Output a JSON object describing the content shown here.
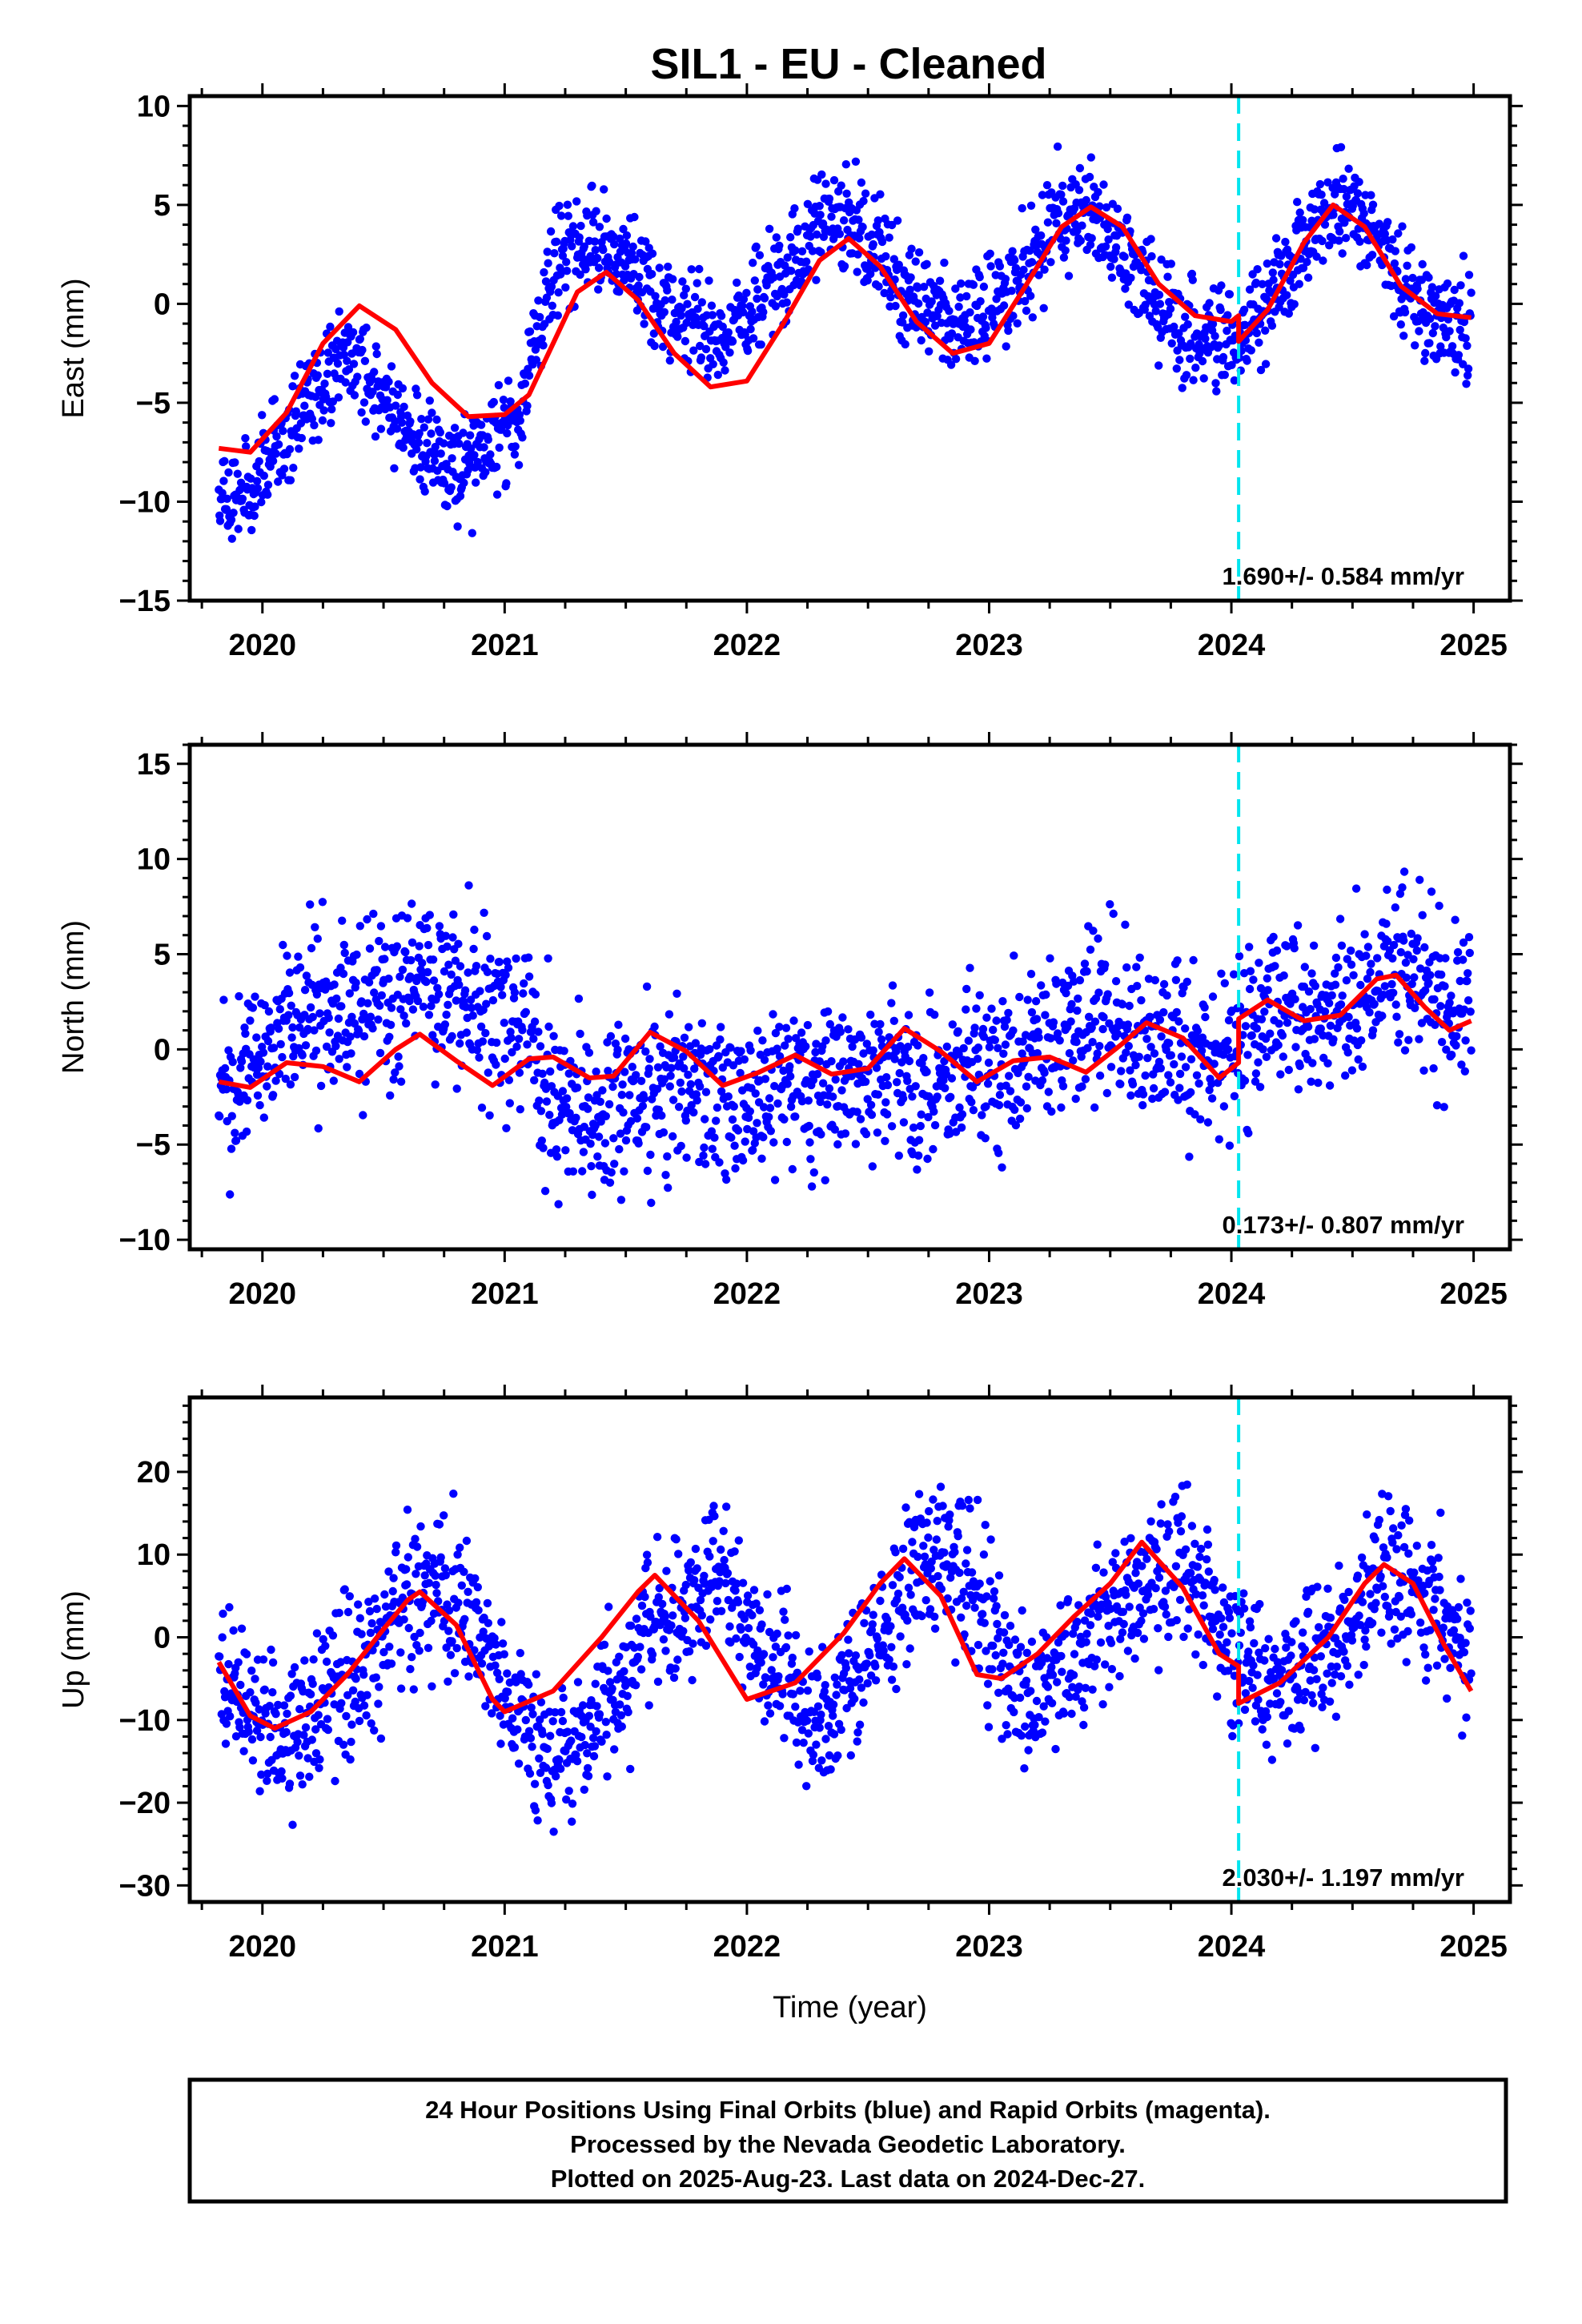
{
  "title": "SIL1  - EU - Cleaned",
  "colors": {
    "final_orbit_points": "#0000ff",
    "model_fit": "#ff0000",
    "event_marker": "#00e5ee",
    "frame": "#000000"
  },
  "chart_data": [
    {
      "type": "scatter",
      "ylabel": "East (mm)",
      "xlabel": "",
      "xlim": [
        2019.7,
        2025.15
      ],
      "ylim": [
        -15,
        10.5
      ],
      "xticks": [
        2020,
        2021,
        2022,
        2023,
        2024,
        2025
      ],
      "yticks": [
        -15,
        -10,
        -5,
        0,
        5,
        10
      ],
      "event_marker_x": 2024.03,
      "rate_label": "1.690+/- 0.584 mm/yr",
      "fit": {
        "x": [
          2019.82,
          2019.95,
          2020.1,
          2020.25,
          2020.4,
          2020.55,
          2020.7,
          2020.85,
          2021.0,
          2021.1,
          2021.2,
          2021.3,
          2021.42,
          2021.55,
          2021.7,
          2021.85,
          2022.0,
          2022.15,
          2022.3,
          2022.42,
          2022.55,
          2022.7,
          2022.85,
          2023.0,
          2023.15,
          2023.3,
          2023.42,
          2023.55,
          2023.7,
          2023.85,
          2024.0,
          2024.03,
          2024.03,
          2024.15,
          2024.3,
          2024.42,
          2024.55,
          2024.7,
          2024.85,
          2024.99
        ],
        "y": [
          -7.3,
          -7.5,
          -5.5,
          -2.0,
          -0.1,
          -1.3,
          -4.0,
          -5.7,
          -5.6,
          -4.6,
          -2.0,
          0.6,
          1.6,
          0.2,
          -2.5,
          -4.2,
          -3.9,
          -1.0,
          2.2,
          3.3,
          1.9,
          -0.9,
          -2.5,
          -2.0,
          0.9,
          3.9,
          4.9,
          3.9,
          1.0,
          -0.6,
          -0.9,
          -0.6,
          -1.9,
          -0.3,
          3.1,
          5.0,
          3.9,
          0.9,
          -0.5,
          -0.7
        ]
      },
      "points": {
        "mean": [
          -10,
          -9,
          -7,
          -4,
          -2.5,
          -5,
          -7.5,
          -8.5,
          -7,
          -5,
          2.5,
          3,
          2,
          0,
          -1,
          -2,
          0.5,
          2,
          4.5,
          4,
          1,
          -0.5,
          -1,
          0,
          2,
          5,
          4,
          2,
          0,
          -2,
          -2,
          0,
          3,
          5,
          4,
          1,
          -1,
          -1.5
        ],
        "scatter": 1.3
      }
    },
    {
      "type": "scatter",
      "ylabel": "North (mm)",
      "xlabel": "",
      "xlim": [
        2019.7,
        2025.15
      ],
      "ylim": [
        -10.5,
        16
      ],
      "xticks": [
        2020,
        2021,
        2022,
        2023,
        2024,
        2025
      ],
      "yticks": [
        -10,
        -5,
        0,
        5,
        10,
        15
      ],
      "event_marker_x": 2024.03,
      "rate_label": "0.173+/- 0.807 mm/yr",
      "fit": {
        "x": [
          2019.82,
          2019.95,
          2020.1,
          2020.25,
          2020.4,
          2020.55,
          2020.65,
          2020.8,
          2020.95,
          2021.1,
          2021.2,
          2021.35,
          2021.45,
          2021.6,
          2021.75,
          2021.9,
          2022.05,
          2022.2,
          2022.35,
          2022.5,
          2022.65,
          2022.8,
          2022.95,
          2023.1,
          2023.25,
          2023.4,
          2023.55,
          2023.65,
          2023.8,
          2023.95,
          2024.03,
          2024.03,
          2024.15,
          2024.3,
          2024.45,
          2024.6,
          2024.68,
          2024.8,
          2024.9,
          2024.99
        ],
        "y": [
          -1.7,
          -2.0,
          -0.7,
          -0.9,
          -1.7,
          0.0,
          0.8,
          -0.6,
          -1.9,
          -0.5,
          -0.4,
          -1.5,
          -1.4,
          0.9,
          -0.1,
          -1.9,
          -1.2,
          -0.3,
          -1.3,
          -1.0,
          1.1,
          -0.1,
          -1.7,
          -0.6,
          -0.4,
          -1.2,
          0.3,
          1.4,
          0.6,
          -1.5,
          -0.7,
          1.6,
          2.6,
          1.5,
          1.8,
          3.7,
          3.9,
          2.2,
          1.0,
          1.5
        ]
      },
      "points": {
        "mean": [
          -2,
          -1,
          2,
          2,
          2,
          3,
          4,
          3,
          2,
          1,
          -3,
          -3,
          -3,
          -2,
          -2,
          -3,
          -3,
          -2,
          -2,
          -1,
          -1,
          -2,
          -1,
          -1,
          0,
          1,
          2,
          1,
          0,
          0,
          0,
          2,
          2,
          2,
          3,
          4,
          3,
          2
        ],
        "scatter": 2.2
      }
    },
    {
      "type": "scatter",
      "ylabel": "Up (mm)",
      "xlabel": "Time (year)",
      "xlim": [
        2019.7,
        2025.15
      ],
      "ylim": [
        -32,
        29
      ],
      "xticks": [
        2020,
        2021,
        2022,
        2023,
        2024,
        2025
      ],
      "yticks": [
        -30,
        -20,
        -10,
        0,
        10,
        20
      ],
      "event_marker_x": 2024.03,
      "rate_label": "2.030+/- 1.197 mm/yr",
      "fit": {
        "x": [
          2019.82,
          2019.95,
          2020.05,
          2020.2,
          2020.35,
          2020.5,
          2020.6,
          2020.65,
          2020.8,
          2020.95,
          2021.0,
          2021.2,
          2021.4,
          2021.55,
          2021.62,
          2021.8,
          2022.0,
          2022.2,
          2022.4,
          2022.55,
          2022.65,
          2022.8,
          2022.95,
          2023.05,
          2023.2,
          2023.35,
          2023.5,
          2023.63,
          2023.8,
          2023.95,
          2024.03,
          2024.03,
          2024.2,
          2024.4,
          2024.55,
          2024.63,
          2024.75,
          2024.88,
          2024.99
        ],
        "y": [
          -3.0,
          -9.5,
          -11.0,
          -9.0,
          -4.5,
          1.0,
          4.5,
          5.5,
          1.5,
          -7.5,
          -9.0,
          -6.5,
          0.0,
          5.5,
          7.5,
          2.0,
          -7.5,
          -5.5,
          0.5,
          6.5,
          9.5,
          5.0,
          -4.5,
          -5.0,
          -2.0,
          2.5,
          6.5,
          11.5,
          6.0,
          -2.0,
          -3.5,
          -8.0,
          -5.5,
          0.0,
          6.5,
          8.8,
          6.5,
          -1.0,
          -6.5
        ]
      },
      "points": {
        "mean": [
          -5,
          -10,
          -12,
          -9,
          -4,
          1,
          4,
          6,
          0,
          -8,
          -15,
          -12,
          -6,
          0,
          5,
          8,
          2,
          -5,
          -10,
          -6,
          0,
          6,
          10,
          5,
          -5,
          -6,
          -2,
          3,
          6,
          10,
          5,
          -3,
          -5,
          -4,
          0,
          6,
          9,
          2,
          -4
        ],
        "scatter": 4.5
      }
    }
  ],
  "footer": {
    "line1": "24 Hour Positions Using Final Orbits (blue) and Rapid Orbits (magenta).",
    "line2": "Processed by the Nevada Geodetic Laboratory.",
    "line3": "Plotted on 2025-Aug-23. Last data on 2024-Dec-27."
  }
}
